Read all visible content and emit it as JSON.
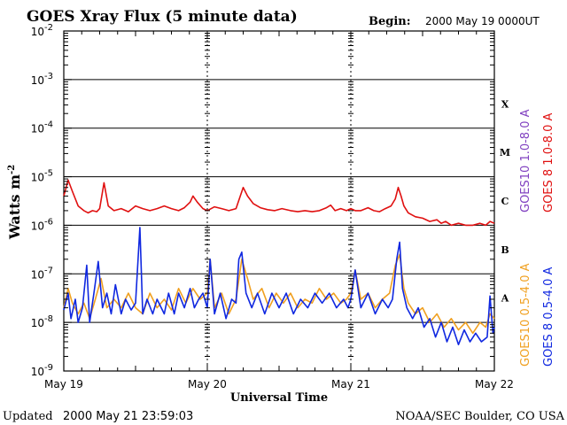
{
  "header": {
    "title": "GOES Xray Flux (5 minute data)",
    "begin_label": "Begin:",
    "begin_value": "2000 May 19 0000UT"
  },
  "footer": {
    "updated_label": "Updated",
    "updated_value": "2000 May 21 23:59:03",
    "credit": "NOAA/SEC Boulder, CO USA"
  },
  "chart_data": {
    "type": "line",
    "title": "GOES Xray Flux (5 minute data)",
    "xlabel": "Universal Time",
    "ylabel": "Watts m",
    "ylabel_sup": "-2",
    "yscale": "log",
    "ylim": [
      1e-09,
      0.01
    ],
    "xlim": [
      "2000-05-19 00:00",
      "2000-05-22 00:00"
    ],
    "x_ticks": [
      "May 19",
      "May 20",
      "May 21",
      "May 22"
    ],
    "y_ticks": [
      {
        "base": "10",
        "exp": "-2"
      },
      {
        "base": "10",
        "exp": "-3"
      },
      {
        "base": "10",
        "exp": "-4"
      },
      {
        "base": "10",
        "exp": "-5"
      },
      {
        "base": "10",
        "exp": "-6"
      },
      {
        "base": "10",
        "exp": "-7"
      },
      {
        "base": "10",
        "exp": "-8"
      },
      {
        "base": "10",
        "exp": "-9"
      }
    ],
    "flare_classes": [
      "X",
      "M",
      "C",
      "B",
      "A"
    ],
    "grid": true,
    "series": [
      {
        "name": "GOES10 1.0-8.0 A",
        "color": "#8040c0",
        "values": []
      },
      {
        "name": "GOES 8 1.0-8.0 A",
        "color": "#e01010",
        "values": [
          [
            0.0,
            4e-06
          ],
          [
            0.03,
            8.5e-06
          ],
          [
            0.06,
            5e-06
          ],
          [
            0.1,
            2.5e-06
          ],
          [
            0.14,
            2e-06
          ],
          [
            0.17,
            1.8e-06
          ],
          [
            0.2,
            2e-06
          ],
          [
            0.23,
            1.9e-06
          ],
          [
            0.25,
            2.2e-06
          ],
          [
            0.28,
            7.5e-06
          ],
          [
            0.31,
            2.5e-06
          ],
          [
            0.35,
            2e-06
          ],
          [
            0.4,
            2.2e-06
          ],
          [
            0.45,
            1.9e-06
          ],
          [
            0.5,
            2.5e-06
          ],
          [
            0.55,
            2.2e-06
          ],
          [
            0.6,
            2e-06
          ],
          [
            0.65,
            2.2e-06
          ],
          [
            0.7,
            2.5e-06
          ],
          [
            0.75,
            2.2e-06
          ],
          [
            0.8,
            2e-06
          ],
          [
            0.84,
            2.3e-06
          ],
          [
            0.88,
            3e-06
          ],
          [
            0.9,
            4e-06
          ],
          [
            0.93,
            3e-06
          ],
          [
            0.97,
            2.2e-06
          ],
          [
            1.0,
            2e-06
          ],
          [
            1.05,
            2.4e-06
          ],
          [
            1.1,
            2.2e-06
          ],
          [
            1.15,
            2e-06
          ],
          [
            1.2,
            2.2e-06
          ],
          [
            1.25,
            6e-06
          ],
          [
            1.28,
            4e-06
          ],
          [
            1.32,
            2.8e-06
          ],
          [
            1.37,
            2.3e-06
          ],
          [
            1.42,
            2.1e-06
          ],
          [
            1.47,
            2e-06
          ],
          [
            1.52,
            2.2e-06
          ],
          [
            1.58,
            2e-06
          ],
          [
            1.63,
            1.9e-06
          ],
          [
            1.68,
            2e-06
          ],
          [
            1.73,
            1.9e-06
          ],
          [
            1.78,
            2e-06
          ],
          [
            1.83,
            2.3e-06
          ],
          [
            1.86,
            2.6e-06
          ],
          [
            1.89,
            2e-06
          ],
          [
            1.93,
            2.2e-06
          ],
          [
            1.97,
            2e-06
          ],
          [
            2.0,
            2.2e-06
          ],
          [
            2.03,
            2e-06
          ],
          [
            2.07,
            2e-06
          ],
          [
            2.12,
            2.3e-06
          ],
          [
            2.16,
            2e-06
          ],
          [
            2.2,
            1.9e-06
          ],
          [
            2.24,
            2.2e-06
          ],
          [
            2.28,
            2.5e-06
          ],
          [
            2.31,
            3.5e-06
          ],
          [
            2.33,
            6e-06
          ],
          [
            2.35,
            4e-06
          ],
          [
            2.37,
            2.5e-06
          ],
          [
            2.4,
            1.8e-06
          ],
          [
            2.45,
            1.5e-06
          ],
          [
            2.5,
            1.4e-06
          ],
          [
            2.55,
            1.2e-06
          ],
          [
            2.6,
            1.3e-06
          ],
          [
            2.63,
            1.1e-06
          ],
          [
            2.66,
            1.2e-06
          ],
          [
            2.7,
            1e-06
          ],
          [
            2.75,
            1.1e-06
          ],
          [
            2.8,
            1e-06
          ],
          [
            2.85,
            1e-06
          ],
          [
            2.9,
            1.1e-06
          ],
          [
            2.94,
            1e-06
          ],
          [
            2.97,
            1.2e-06
          ],
          [
            3.0,
            1.1e-06
          ]
        ]
      },
      {
        "name": "GOES10 0.5-4.0 A",
        "color": "#f0a020",
        "values": [
          [
            0.0,
            2e-08
          ],
          [
            0.03,
            5e-08
          ],
          [
            0.06,
            2.5e-08
          ],
          [
            0.1,
            1.5e-08
          ],
          [
            0.14,
            2.5e-08
          ],
          [
            0.18,
            1.2e-08
          ],
          [
            0.22,
            3e-08
          ],
          [
            0.26,
            8e-08
          ],
          [
            0.3,
            2e-08
          ],
          [
            0.35,
            3e-08
          ],
          [
            0.4,
            2e-08
          ],
          [
            0.45,
            4e-08
          ],
          [
            0.5,
            2e-08
          ],
          [
            0.55,
            1.5e-08
          ],
          [
            0.6,
            4e-08
          ],
          [
            0.65,
            2e-08
          ],
          [
            0.7,
            3e-08
          ],
          [
            0.75,
            1.8e-08
          ],
          [
            0.8,
            5e-08
          ],
          [
            0.85,
            2.5e-08
          ],
          [
            0.9,
            5e-08
          ],
          [
            0.95,
            3e-08
          ],
          [
            1.0,
            4e-08
          ],
          [
            1.02,
            2e-07
          ],
          [
            1.05,
            2e-08
          ],
          [
            1.1,
            4e-08
          ],
          [
            1.15,
            1.5e-08
          ],
          [
            1.2,
            3e-08
          ],
          [
            1.24,
            2e-07
          ],
          [
            1.28,
            8e-08
          ],
          [
            1.32,
            3e-08
          ],
          [
            1.38,
            5e-08
          ],
          [
            1.43,
            2e-08
          ],
          [
            1.48,
            4e-08
          ],
          [
            1.53,
            2.5e-08
          ],
          [
            1.58,
            4e-08
          ],
          [
            1.63,
            2e-08
          ],
          [
            1.68,
            3e-08
          ],
          [
            1.73,
            2.5e-08
          ],
          [
            1.78,
            5e-08
          ],
          [
            1.83,
            3e-08
          ],
          [
            1.88,
            4e-08
          ],
          [
            1.93,
            2.5e-08
          ],
          [
            1.97,
            3e-08
          ],
          [
            2.0,
            4e-08
          ],
          [
            2.03,
            1.2e-07
          ],
          [
            2.07,
            3e-08
          ],
          [
            2.12,
            4e-08
          ],
          [
            2.17,
            2e-08
          ],
          [
            2.22,
            3e-08
          ],
          [
            2.27,
            4e-08
          ],
          [
            2.31,
            1.5e-07
          ],
          [
            2.34,
            2.5e-07
          ],
          [
            2.37,
            5e-08
          ],
          [
            2.4,
            2.5e-08
          ],
          [
            2.45,
            1.5e-08
          ],
          [
            2.5,
            2e-08
          ],
          [
            2.55,
            1e-08
          ],
          [
            2.6,
            1.5e-08
          ],
          [
            2.65,
            8e-09
          ],
          [
            2.7,
            1.2e-08
          ],
          [
            2.75,
            7e-09
          ],
          [
            2.8,
            1e-08
          ],
          [
            2.85,
            6e-09
          ],
          [
            2.9,
            1e-08
          ],
          [
            2.94,
            8e-09
          ],
          [
            2.97,
            1.5e-08
          ],
          [
            3.0,
            1.2e-08
          ]
        ]
      },
      {
        "name": "GOES 8 0.5-4.0 A",
        "color": "#1028e0",
        "values": [
          [
            0.0,
            1.8e-08
          ],
          [
            0.03,
            4e-08
          ],
          [
            0.05,
            1.2e-08
          ],
          [
            0.08,
            3e-08
          ],
          [
            0.1,
            1e-08
          ],
          [
            0.13,
            2e-08
          ],
          [
            0.16,
            1.5e-07
          ],
          [
            0.18,
            1e-08
          ],
          [
            0.21,
            4e-08
          ],
          [
            0.24,
            1.8e-07
          ],
          [
            0.27,
            2e-08
          ],
          [
            0.3,
            4e-08
          ],
          [
            0.33,
            1.5e-08
          ],
          [
            0.36,
            6e-08
          ],
          [
            0.4,
            1.5e-08
          ],
          [
            0.43,
            3e-08
          ],
          [
            0.47,
            1.8e-08
          ],
          [
            0.5,
            2.5e-08
          ],
          [
            0.53,
            9e-07
          ],
          [
            0.55,
            1.5e-08
          ],
          [
            0.58,
            3e-08
          ],
          [
            0.62,
            1.5e-08
          ],
          [
            0.65,
            3e-08
          ],
          [
            0.7,
            1.5e-08
          ],
          [
            0.73,
            4e-08
          ],
          [
            0.77,
            1.5e-08
          ],
          [
            0.8,
            4e-08
          ],
          [
            0.84,
            2e-08
          ],
          [
            0.88,
            5e-08
          ],
          [
            0.91,
            2e-08
          ],
          [
            0.94,
            3e-08
          ],
          [
            0.97,
            4e-08
          ],
          [
            1.0,
            2e-08
          ],
          [
            1.02,
            2e-07
          ],
          [
            1.05,
            1.5e-08
          ],
          [
            1.09,
            4e-08
          ],
          [
            1.13,
            1.2e-08
          ],
          [
            1.17,
            3e-08
          ],
          [
            1.2,
            2.5e-08
          ],
          [
            1.22,
            2e-07
          ],
          [
            1.24,
            2.8e-07
          ],
          [
            1.27,
            4e-08
          ],
          [
            1.31,
            2e-08
          ],
          [
            1.35,
            4e-08
          ],
          [
            1.4,
            1.5e-08
          ],
          [
            1.45,
            4e-08
          ],
          [
            1.5,
            2e-08
          ],
          [
            1.55,
            4e-08
          ],
          [
            1.6,
            1.5e-08
          ],
          [
            1.65,
            3e-08
          ],
          [
            1.7,
            2e-08
          ],
          [
            1.75,
            4e-08
          ],
          [
            1.8,
            2.5e-08
          ],
          [
            1.85,
            4e-08
          ],
          [
            1.9,
            2e-08
          ],
          [
            1.95,
            3e-08
          ],
          [
            1.98,
            2e-08
          ],
          [
            2.0,
            3e-08
          ],
          [
            2.03,
            1.2e-07
          ],
          [
            2.07,
            2e-08
          ],
          [
            2.12,
            4e-08
          ],
          [
            2.17,
            1.5e-08
          ],
          [
            2.22,
            3e-08
          ],
          [
            2.26,
            2e-08
          ],
          [
            2.29,
            3e-08
          ],
          [
            2.32,
            2e-07
          ],
          [
            2.34,
            4.5e-07
          ],
          [
            2.36,
            5e-08
          ],
          [
            2.39,
            2e-08
          ],
          [
            2.43,
            1.2e-08
          ],
          [
            2.47,
            2e-08
          ],
          [
            2.51,
            8e-09
          ],
          [
            2.55,
            1.2e-08
          ],
          [
            2.59,
            5e-09
          ],
          [
            2.63,
            1e-08
          ],
          [
            2.67,
            4e-09
          ],
          [
            2.71,
            8e-09
          ],
          [
            2.75,
            3.5e-09
          ],
          [
            2.79,
            7e-09
          ],
          [
            2.83,
            4e-09
          ],
          [
            2.87,
            6e-09
          ],
          [
            2.91,
            4e-09
          ],
          [
            2.95,
            5e-09
          ],
          [
            2.97,
            3.5e-08
          ],
          [
            2.99,
            6e-09
          ],
          [
            3.0,
            8e-09
          ]
        ]
      }
    ]
  }
}
